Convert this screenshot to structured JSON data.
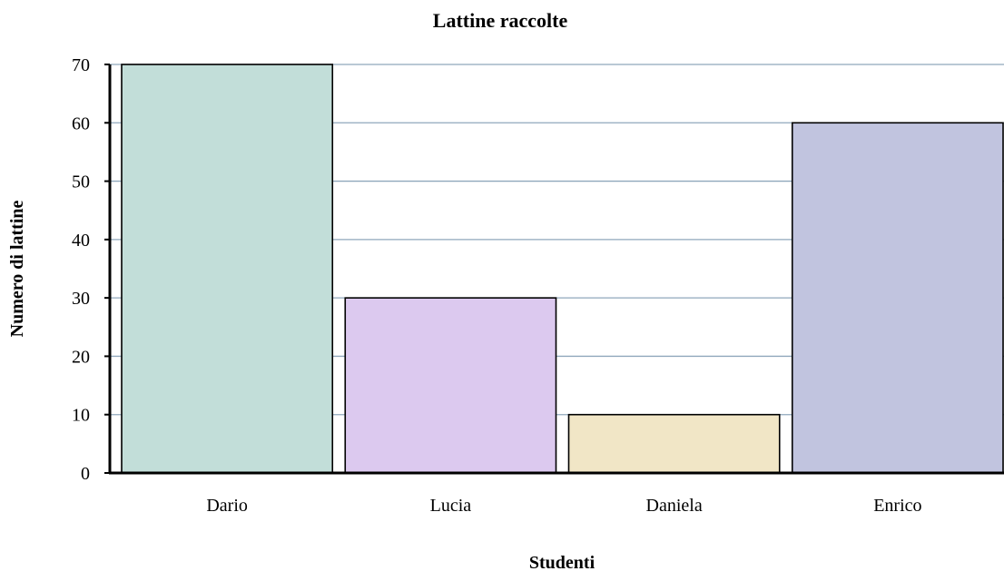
{
  "chart_data": {
    "type": "bar",
    "title": "Lattine raccolte",
    "xlabel": "Studenti",
    "ylabel": "Numero di lattine",
    "categories": [
      "Dario",
      "Lucia",
      "Daniela",
      "Enrico"
    ],
    "values": [
      70,
      30,
      10,
      60
    ],
    "ylim": [
      0,
      70
    ],
    "yticks": [
      "0",
      "10",
      "20",
      "30",
      "40",
      "50",
      "60",
      "70"
    ],
    "grid": true,
    "legend": "none",
    "colors": {
      "bars": [
        "#c2ded9",
        "#dcc9ef",
        "#f1e6c6",
        "#c1c4df"
      ],
      "gridline": "#8fa7bc",
      "axis": "#000000",
      "bar_outline": "#000000"
    }
  }
}
